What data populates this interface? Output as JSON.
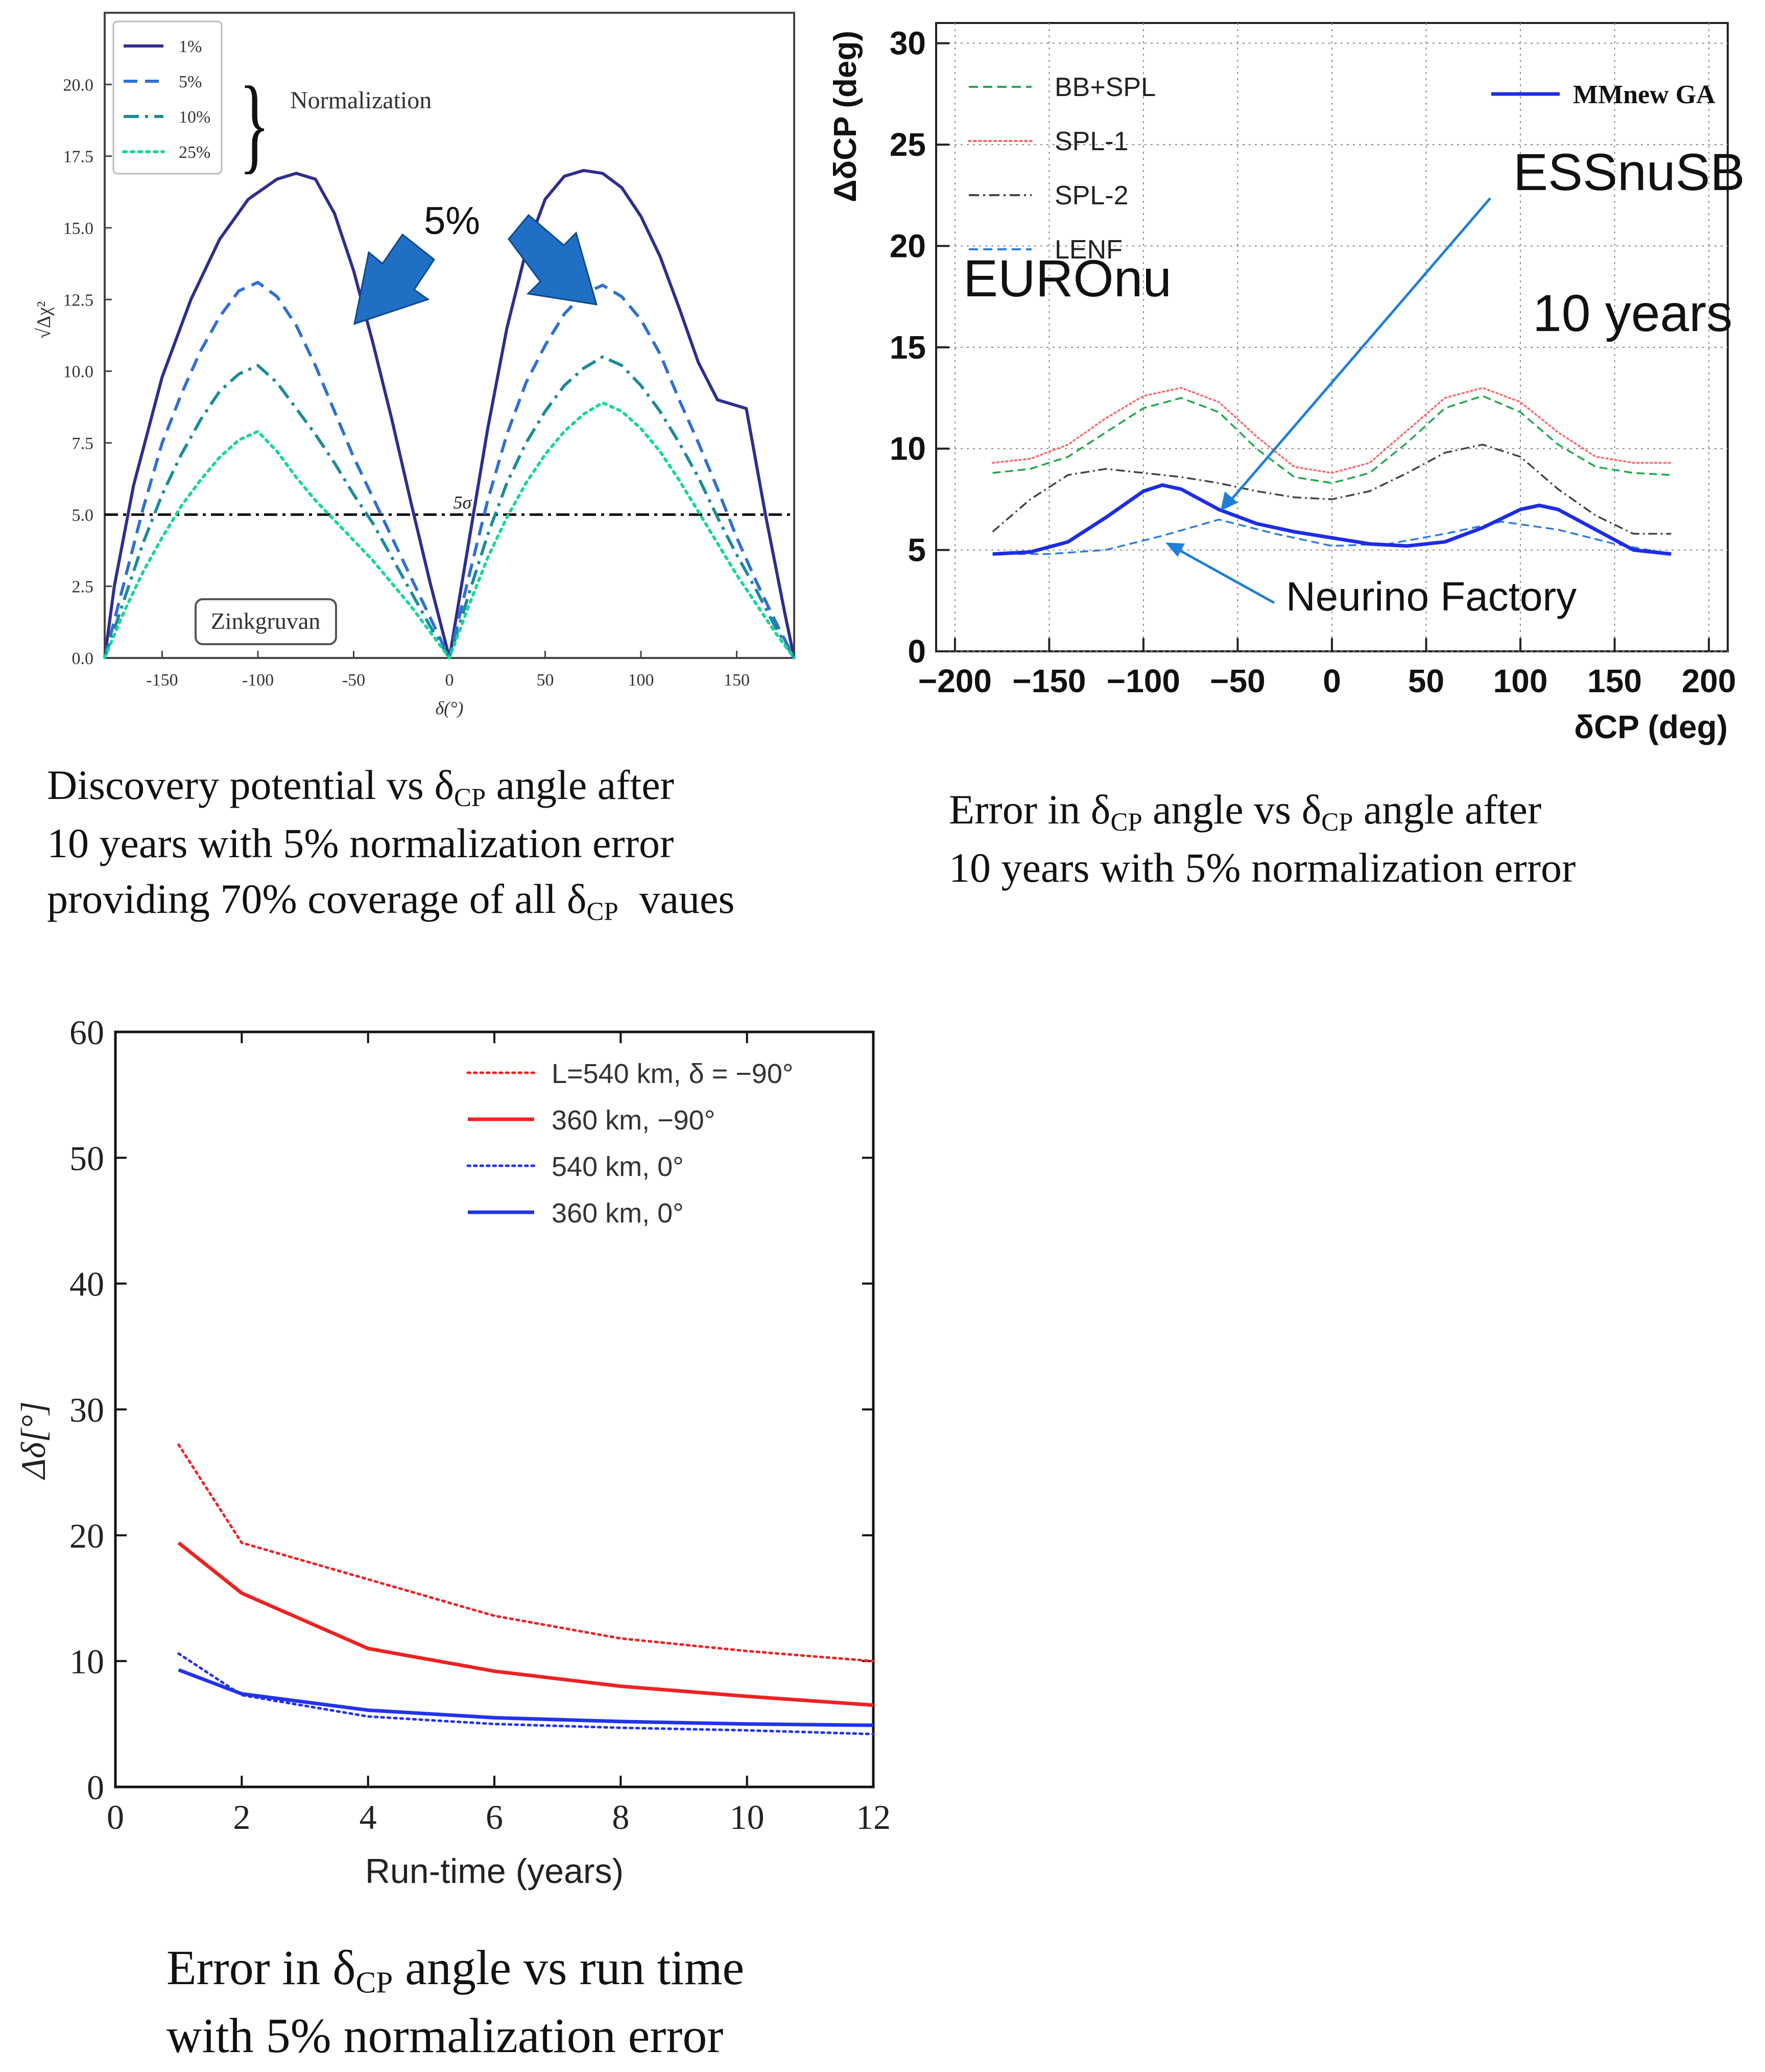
{
  "colors": {
    "navy": "#2e2e8e",
    "blue": "#2f6fd6",
    "teal": "#1b8b9a",
    "green": "#18d69a",
    "arrow": "#1f6fc4",
    "essGreen": "#1fa84a",
    "essRed": "#ff6666",
    "essBlack": "#444444",
    "essBlue": "#2d7be0",
    "mm": "#1d2de6",
    "red": "#ee2222",
    "blueSolid": "#2233ee"
  },
  "panels": [
    {
      "id": "discovery",
      "chart_data": {
        "type": "line",
        "title": "",
        "xlabel": "δ(°)",
        "ylabel": "√Δχ²",
        "xlim": [
          -180,
          180
        ],
        "ylim": [
          0,
          22.5
        ],
        "xticks": [
          "-150",
          "-100",
          "-50",
          "0",
          "50",
          "100",
          "150"
        ],
        "yticks": [
          "0.0",
          "2.5",
          "5.0",
          "7.5",
          "10.0",
          "12.5",
          "15.0",
          "17.5",
          "20.0"
        ],
        "legend_title": "Normalization",
        "legend_position": "top-left",
        "annotations": {
          "sigma_line_label": "5σ",
          "sigma_level": 5.0,
          "site_label": "Zinkgruvan",
          "arrow_label": "5%"
        },
        "series": [
          {
            "name": "1%",
            "style": "solid",
            "color_key": "navy",
            "x": [
              -180,
              -175,
              -165,
              -150,
              -135,
              -120,
              -105,
              -90,
              -80,
              -70,
              -60,
              -50,
              -40,
              -30,
              -20,
              -10,
              0,
              10,
              20,
              30,
              40,
              50,
              60,
              70,
              80,
              90,
              100,
              110,
              120,
              130,
              140,
              150,
              155,
              165,
              175,
              180
            ],
            "y": [
              0,
              2.5,
              6.0,
              9.8,
              12.5,
              14.6,
              16.0,
              16.7,
              16.9,
              16.7,
              15.5,
              13.5,
              11.0,
              8.3,
              5.4,
              2.6,
              0,
              4.0,
              8.0,
              11.5,
              14.2,
              16.0,
              16.8,
              17.0,
              16.9,
              16.4,
              15.4,
              14.0,
              12.2,
              10.3,
              9.0,
              8.8,
              8.7,
              5.0,
              1.6,
              0
            ]
          },
          {
            "name": "5%",
            "style": "dashed",
            "color_key": "blue",
            "x": [
              -180,
              -170,
              -160,
              -150,
              -140,
              -130,
              -120,
              -110,
              -100,
              -90,
              -80,
              -70,
              -60,
              -50,
              -40,
              -30,
              -20,
              -10,
              0,
              10,
              20,
              30,
              40,
              50,
              60,
              70,
              80,
              90,
              100,
              110,
              120,
              130,
              140,
              150,
              160,
              170,
              180
            ],
            "y": [
              0,
              2.6,
              5.2,
              7.5,
              9.2,
              10.7,
              11.9,
              12.8,
              13.1,
              12.6,
              11.6,
              10.2,
              8.6,
              7.0,
              5.6,
              4.2,
              2.8,
              1.4,
              0,
              2.8,
              5.5,
              7.8,
              9.6,
              10.9,
              12.0,
              12.7,
              13.0,
              12.6,
              11.8,
              10.6,
              9.0,
              7.5,
              5.9,
              4.2,
              2.7,
              1.3,
              0
            ]
          },
          {
            "name": "10%",
            "style": "dashdot",
            "color_key": "teal",
            "x": [
              -180,
              -170,
              -160,
              -150,
              -140,
              -130,
              -120,
              -110,
              -100,
              -90,
              -80,
              -70,
              -60,
              -50,
              -40,
              -30,
              -20,
              -10,
              0,
              10,
              20,
              30,
              40,
              50,
              60,
              70,
              80,
              90,
              100,
              110,
              120,
              130,
              140,
              150,
              160,
              170,
              180
            ],
            "y": [
              0,
              2.0,
              4.0,
              5.7,
              7.1,
              8.3,
              9.3,
              9.9,
              10.2,
              9.6,
              8.7,
              7.8,
              6.8,
              5.7,
              4.7,
              3.5,
              2.3,
              1.1,
              0,
              2.2,
              4.3,
              6.1,
              7.5,
              8.6,
              9.5,
              10.1,
              10.5,
              10.2,
              9.5,
              8.6,
              7.5,
              6.3,
              4.9,
              3.6,
              2.4,
              1.1,
              0
            ]
          },
          {
            "name": "25%",
            "style": "dotted",
            "color_key": "green",
            "x": [
              -180,
              -170,
              -160,
              -150,
              -140,
              -130,
              -120,
              -110,
              -100,
              -90,
              -80,
              -70,
              -60,
              -50,
              -40,
              -30,
              -20,
              -10,
              0,
              10,
              20,
              30,
              40,
              50,
              60,
              70,
              80,
              90,
              100,
              110,
              120,
              130,
              140,
              150,
              160,
              170,
              180
            ],
            "y": [
              0,
              1.6,
              3.0,
              4.2,
              5.3,
              6.2,
              7.0,
              7.6,
              7.9,
              7.2,
              6.3,
              5.5,
              4.8,
              4.1,
              3.4,
              2.6,
              1.8,
              0.9,
              0,
              1.8,
              3.5,
              4.9,
              6.1,
              7.1,
              7.9,
              8.5,
              8.9,
              8.6,
              8.0,
              7.2,
              6.2,
              5.1,
              4.0,
              2.9,
              1.9,
              0.9,
              0
            ]
          }
        ]
      }
    },
    {
      "id": "error-vs-delta",
      "chart_data": {
        "type": "line",
        "title": "",
        "xlabel": "δCP (deg)",
        "ylabel": "ΔδCP (deg)",
        "xlim": [
          -210,
          210
        ],
        "ylim": [
          0,
          31
        ],
        "xticks": [
          "−200",
          "−150",
          "−100",
          "−50",
          "0",
          "50",
          "100",
          "150",
          "200"
        ],
        "yticks": [
          "0",
          "5",
          "10",
          "15",
          "20",
          "25",
          "30"
        ],
        "grid": true,
        "legend_position": "top-left",
        "annotations": {
          "euronu_label": "EUROnu",
          "essnusb_label": "ESSnuSB",
          "years_label": "10 years",
          "nufact_label": "Neurino Factory",
          "mm_label": "MMnew GA"
        },
        "series": [
          {
            "name": "BB+SPL",
            "style": "dashed",
            "color_key": "essGreen",
            "x": [
              -180,
              -160,
              -140,
              -120,
              -100,
              -80,
              -60,
              -40,
              -20,
              0,
              20,
              40,
              60,
              80,
              100,
              120,
              140,
              160,
              180
            ],
            "y": [
              8.8,
              9.0,
              9.6,
              10.8,
              12.0,
              12.5,
              11.8,
              10.0,
              8.6,
              8.3,
              8.8,
              10.3,
              12.0,
              12.6,
              11.8,
              10.2,
              9.1,
              8.8,
              8.7
            ]
          },
          {
            "name": "SPL-1",
            "style": "dotted",
            "color_key": "essRed",
            "x": [
              -180,
              -160,
              -140,
              -120,
              -100,
              -80,
              -60,
              -40,
              -20,
              0,
              20,
              40,
              60,
              80,
              100,
              120,
              140,
              160,
              180
            ],
            "y": [
              9.3,
              9.5,
              10.2,
              11.5,
              12.6,
              13.0,
              12.3,
              10.6,
              9.1,
              8.8,
              9.3,
              10.9,
              12.5,
              13.0,
              12.3,
              10.8,
              9.6,
              9.3,
              9.3
            ]
          },
          {
            "name": "SPL-2",
            "style": "dashdot",
            "color_key": "essBlack",
            "x": [
              -180,
              -160,
              -140,
              -120,
              -100,
              -80,
              -60,
              -40,
              -20,
              0,
              20,
              40,
              60,
              80,
              100,
              120,
              140,
              160,
              180
            ],
            "y": [
              5.9,
              7.5,
              8.7,
              9.0,
              8.8,
              8.6,
              8.3,
              7.9,
              7.6,
              7.5,
              7.9,
              8.8,
              9.8,
              10.2,
              9.6,
              8.0,
              6.7,
              5.8,
              5.8
            ]
          },
          {
            "name": "LENF",
            "style": "dashed",
            "color_key": "essBlue",
            "x": [
              -180,
              -150,
              -120,
              -90,
              -60,
              -30,
              0,
              30,
              60,
              90,
              120,
              150,
              180
            ],
            "y": [
              4.8,
              4.8,
              5.0,
              5.7,
              6.5,
              5.8,
              5.2,
              5.3,
              5.8,
              6.4,
              6.0,
              5.3,
              4.8
            ]
          },
          {
            "name": "MMnew GA",
            "style": "solid",
            "color_key": "mm",
            "x": [
              -180,
              -160,
              -140,
              -120,
              -100,
              -90,
              -80,
              -60,
              -40,
              -20,
              0,
              20,
              40,
              60,
              80,
              100,
              110,
              120,
              140,
              160,
              180
            ],
            "y": [
              4.8,
              4.9,
              5.4,
              6.6,
              7.9,
              8.2,
              8.0,
              7.0,
              6.3,
              5.9,
              5.6,
              5.3,
              5.2,
              5.4,
              6.1,
              7.0,
              7.2,
              7.0,
              6.0,
              5.0,
              4.8
            ]
          }
        ]
      }
    },
    {
      "id": "error-vs-runtime",
      "chart_data": {
        "type": "line",
        "title": "",
        "xlabel": "Run-time (years)",
        "ylabel": "Δδ[°]",
        "xlim": [
          0,
          12
        ],
        "ylim": [
          0,
          60
        ],
        "xticks": [
          "0",
          "2",
          "4",
          "6",
          "8",
          "10",
          "12"
        ],
        "yticks": [
          "0",
          "10",
          "20",
          "30",
          "40",
          "50",
          "60"
        ],
        "legend_position": "top-right",
        "series": [
          {
            "name": "L=540 km, δ = −90°",
            "style": "dotted",
            "color_key": "red",
            "x": [
              1,
              2,
              4,
              6,
              8,
              10,
              12
            ],
            "y": [
              27.2,
              19.4,
              16.5,
              13.6,
              11.8,
              10.8,
              10.0
            ]
          },
          {
            "name": "360 km, −90°",
            "style": "solid",
            "color_key": "red",
            "x": [
              1,
              2,
              4,
              6,
              8,
              10,
              12
            ],
            "y": [
              19.4,
              15.4,
              11.0,
              9.2,
              8.0,
              7.2,
              6.5
            ]
          },
          {
            "name": "540 km, 0°",
            "style": "dotted",
            "color_key": "blueSolid",
            "x": [
              1,
              2,
              4,
              6,
              8,
              10,
              12
            ],
            "y": [
              10.6,
              7.3,
              5.6,
              5.0,
              4.7,
              4.5,
              4.2
            ]
          },
          {
            "name": "360 km, 0°",
            "style": "solid",
            "color_key": "blueSolid",
            "x": [
              1,
              2,
              4,
              6,
              8,
              10,
              12
            ],
            "y": [
              9.3,
              7.4,
              6.1,
              5.5,
              5.2,
              5.0,
              4.9
            ]
          }
        ]
      }
    }
  ],
  "captions": {
    "a": {
      "l1_pre": "Discovery potential vs δ",
      "l1_sub": "CP",
      "l1_post": " angle after",
      "l2": "10 years with 5% normalization error",
      "l3_pre": "providing 70% coverage of all δ",
      "l3_sub": "CP",
      "l3_post": "  vaues"
    },
    "b": {
      "l1_a": "Error in δ",
      "l1_sub1": "CP",
      "l1_b": " angle vs δ",
      "l1_sub2": "CP",
      "l1_c": " angle after",
      "l2": "10 years with 5% normalization error"
    },
    "c": {
      "l1_a": "Error in δ",
      "l1_sub": "CP",
      "l1_b": " angle vs run time",
      "l2": "with 5% normalization error"
    }
  }
}
